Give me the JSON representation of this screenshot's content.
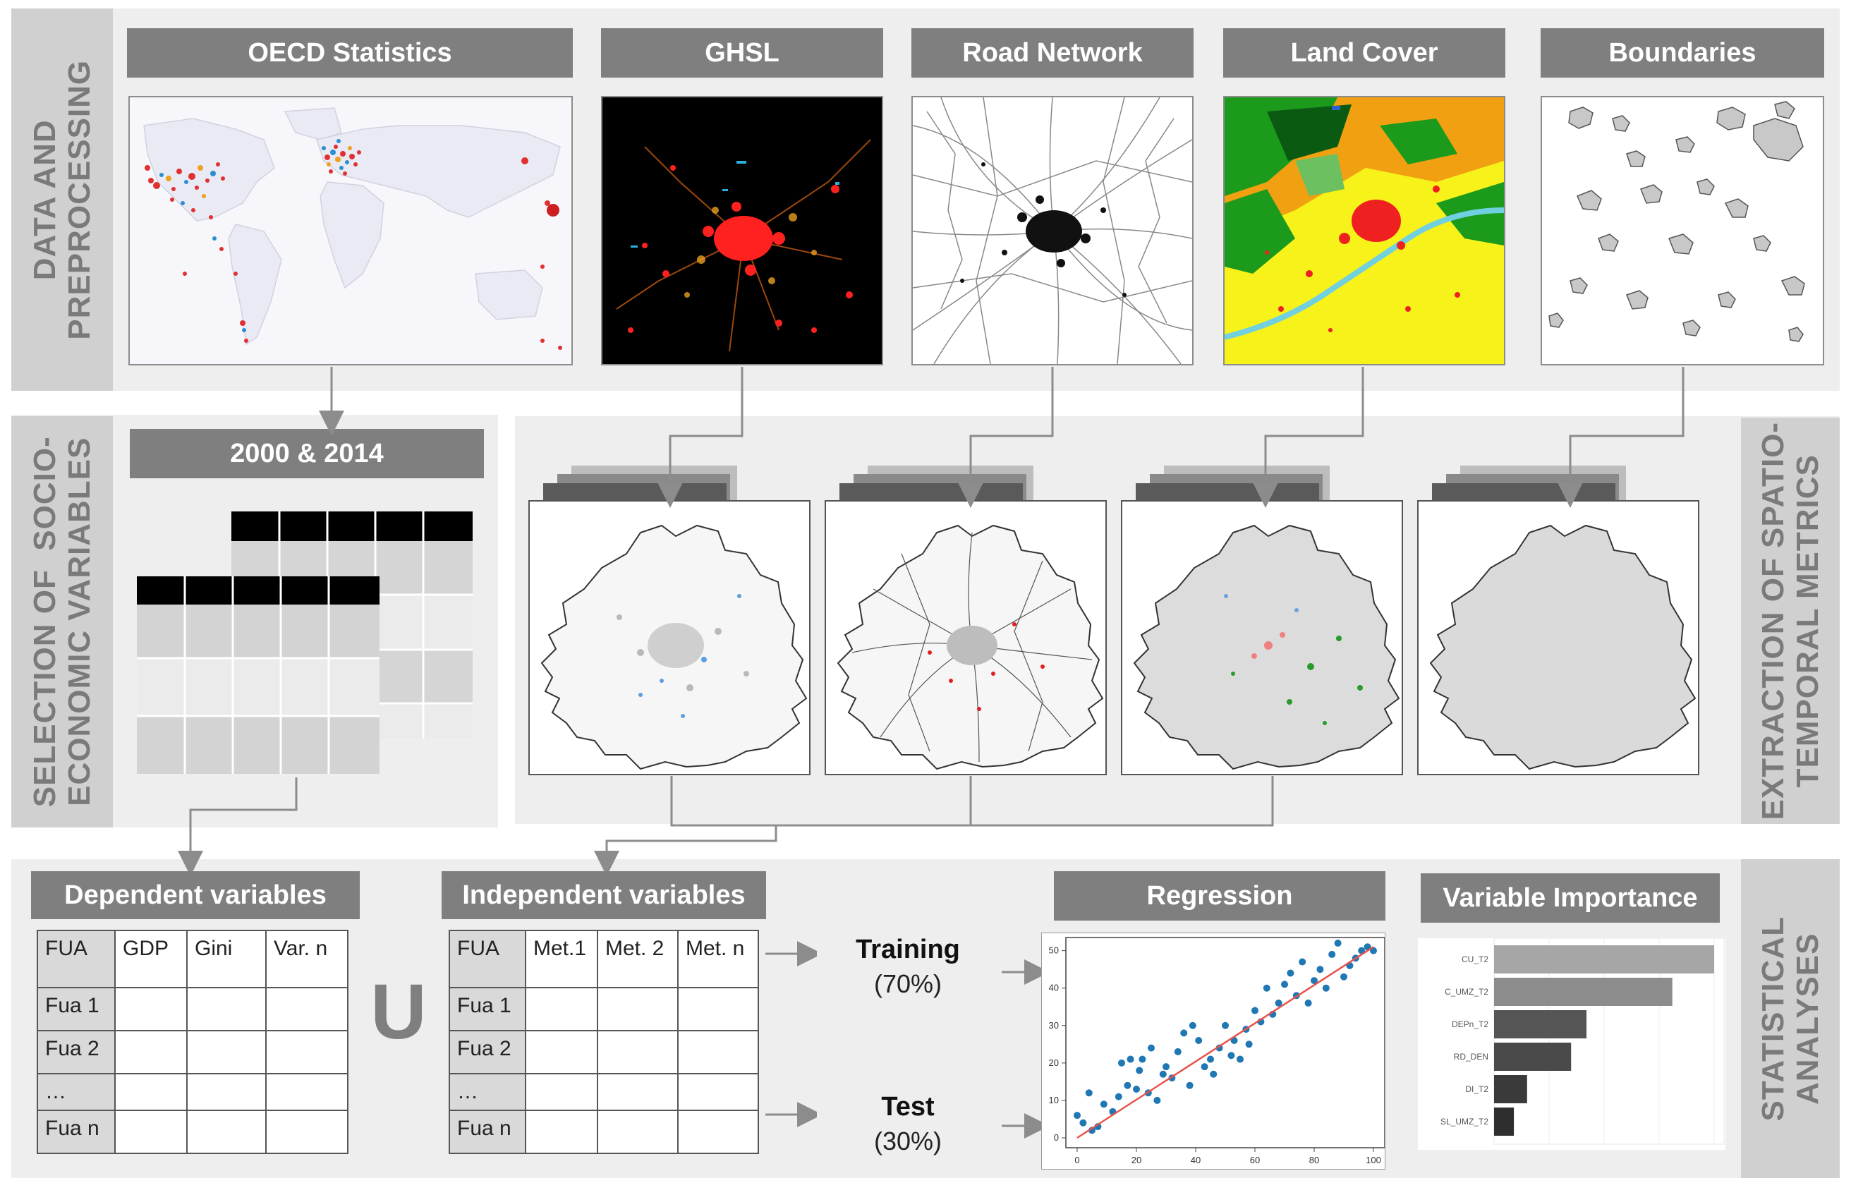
{
  "sections": {
    "data": "DATA AND\nPREPROCESSING",
    "selection": "SELECTION OF  SOCIO-\nECONOMIC VARIABLES",
    "extraction": "EXTRACTION OF SPATIO-\nTEMPORAL METRICS",
    "statistical": "STATISTICAL\nANALYSES"
  },
  "sources": {
    "oecd": "OECD Statistics",
    "ghsl": "GHSL",
    "road": "Road Network",
    "landcover": "Land Cover",
    "boundaries": "Boundaries"
  },
  "years": "2000 & 2014",
  "dependent": {
    "title": "Dependent variables",
    "headers": [
      "FUA",
      "GDP",
      "Gini",
      "Var. n"
    ],
    "rows": [
      "Fua 1",
      "Fua 2",
      "…",
      "Fua n"
    ]
  },
  "union_symbol": "U",
  "independent": {
    "title": "Independent variables",
    "headers": [
      "FUA",
      "Met.1",
      "Met. 2",
      "Met. n"
    ],
    "rows": [
      "Fua 1",
      "Fua 2",
      "…",
      "Fua n"
    ]
  },
  "training": {
    "label": "Training",
    "pct": "(70%)"
  },
  "test": {
    "label": "Test",
    "pct": "(30%)"
  },
  "regression": {
    "title": "Regression"
  },
  "importance": {
    "title": "Variable Importance"
  },
  "chart_data": [
    {
      "type": "scatter",
      "title": "Regression",
      "xlim": [
        0,
        100
      ],
      "ylim": [
        0,
        52
      ],
      "xticks": [
        0,
        20,
        40,
        60,
        80,
        100
      ],
      "yticks": [
        0,
        10,
        20,
        30,
        40,
        50
      ],
      "points_color": "#1f77b4",
      "fit_color": "#e8524a",
      "fit_line": [
        [
          0,
          0
        ],
        [
          100,
          51
        ]
      ],
      "x": [
        0,
        2,
        4,
        5,
        7,
        9,
        12,
        14,
        15,
        17,
        18,
        20,
        21,
        22,
        24,
        25,
        27,
        29,
        30,
        32,
        34,
        36,
        38,
        39,
        41,
        43,
        45,
        46,
        48,
        50,
        52,
        53,
        55,
        57,
        58,
        60,
        62,
        64,
        66,
        68,
        70,
        72,
        74,
        76,
        78,
        80,
        82,
        84,
        86,
        88,
        90,
        92,
        94,
        96,
        98,
        100
      ],
      "y": [
        6,
        4,
        12,
        2,
        3,
        9,
        7,
        11,
        20,
        14,
        21,
        13,
        18,
        21,
        12,
        24,
        10,
        17,
        19,
        16,
        23,
        28,
        14,
        30,
        26,
        19,
        21,
        17,
        24,
        30,
        22,
        26,
        21,
        29,
        25,
        34,
        31,
        40,
        33,
        36,
        41,
        44,
        38,
        47,
        36,
        42,
        45,
        40,
        49,
        52,
        43,
        46,
        48,
        50,
        51,
        50
      ]
    },
    {
      "type": "bar",
      "orientation": "horizontal",
      "title": "Variable Importance",
      "categories": [
        "CU_T2",
        "C_UMZ_T2",
        "DEPn_T2",
        "RD_DEN",
        "DI_T2",
        "SL_UMZ_T2"
      ],
      "values": [
        100,
        81,
        42,
        35,
        15,
        9
      ],
      "colors": [
        "#a6a6a6",
        "#8c8c8c",
        "#555555",
        "#4a4a4a",
        "#3a3a3a",
        "#2e2e2e"
      ]
    }
  ]
}
